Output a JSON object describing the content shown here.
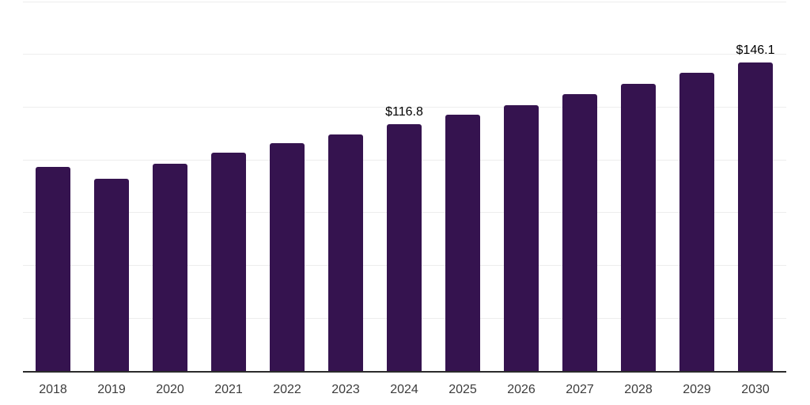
{
  "chart_data": {
    "type": "bar",
    "title": "",
    "xlabel": "",
    "ylabel": "",
    "categories": [
      "2018",
      "2019",
      "2020",
      "2021",
      "2022",
      "2023",
      "2024",
      "2025",
      "2026",
      "2027",
      "2028",
      "2029",
      "2030"
    ],
    "values": [
      96.7,
      91.0,
      98.2,
      103.5,
      107.8,
      112.1,
      116.8,
      121.6,
      126.1,
      131.0,
      135.9,
      141.3,
      146.1
    ],
    "value_labels": {
      "2024": "$116.8",
      "2030": "$146.1"
    },
    "ylim": [
      0,
      175
    ],
    "gridline_step": 25,
    "grid": true,
    "legend": "none",
    "colors": {
      "bar": "#35134f",
      "gridline": "#ededed",
      "axis_line": "#2b2b2b",
      "tick_label": "#3c3c3c",
      "value_label": "#000000",
      "background": "#ffffff"
    }
  }
}
